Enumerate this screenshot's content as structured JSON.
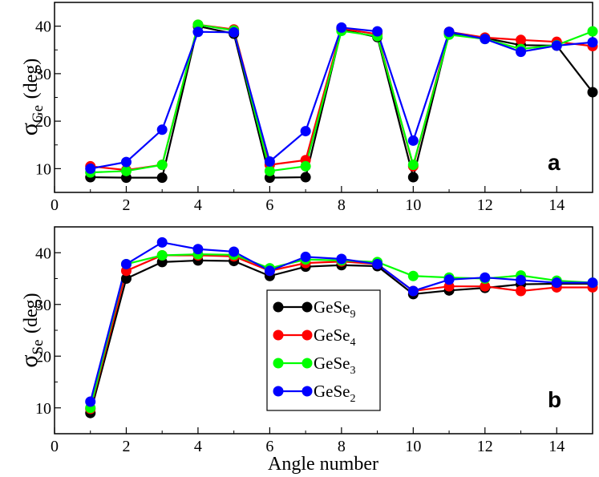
{
  "figure": {
    "xlabel": "Angle number",
    "legend": {
      "placement": "center",
      "entries": [
        {
          "base": "GeSe",
          "sub": "9"
        },
        {
          "base": "GeSe",
          "sub": "4"
        },
        {
          "base": "GeSe",
          "sub": "3"
        },
        {
          "base": "GeSe",
          "sub": "2"
        }
      ]
    }
  },
  "chart_data": [
    {
      "type": "line",
      "panel_label": "a",
      "ylabel": {
        "base": "σ",
        "sub": "Ge",
        "unit": "(deg)"
      },
      "x": [
        1,
        2,
        3,
        4,
        5,
        6,
        7,
        8,
        9,
        10,
        11,
        12,
        13,
        14,
        15
      ],
      "xlim": [
        0,
        15
      ],
      "ylim": [
        5,
        45
      ],
      "xticks": [
        0,
        2,
        4,
        6,
        8,
        10,
        12,
        14
      ],
      "yticks": [
        10,
        20,
        30,
        40
      ],
      "grid": false,
      "series": [
        {
          "name": "GeSe9",
          "color": "#000000",
          "values": [
            8.2,
            8.1,
            8.1,
            40.0,
            38.4,
            8.1,
            8.2,
            39.3,
            37.7,
            8.2,
            38.5,
            37.5,
            36.0,
            35.9,
            26.1
          ]
        },
        {
          "name": "GeSe4",
          "color": "#ff0000",
          "values": [
            10.5,
            9.7,
            10.8,
            40.3,
            39.3,
            10.8,
            11.8,
            39.5,
            38.3,
            10.5,
            38.8,
            37.6,
            37.1,
            36.7,
            35.8
          ]
        },
        {
          "name": "GeSe3",
          "color": "#00ff00",
          "values": [
            9.2,
            9.5,
            10.8,
            40.3,
            39.1,
            9.5,
            10.5,
            39.0,
            37.9,
            10.8,
            38.2,
            37.3,
            35.2,
            36.0,
            38.9
          ]
        },
        {
          "name": "GeSe2",
          "color": "#0000ff",
          "values": [
            10.0,
            11.4,
            18.2,
            38.8,
            38.7,
            11.5,
            17.9,
            39.7,
            38.9,
            15.9,
            38.8,
            37.3,
            34.6,
            35.9,
            36.6
          ]
        }
      ]
    },
    {
      "type": "line",
      "panel_label": "b",
      "ylabel": {
        "base": "σ",
        "sub": "Se",
        "unit": "(deg)"
      },
      "x": [
        1,
        2,
        3,
        4,
        5,
        6,
        7,
        8,
        9,
        10,
        11,
        12,
        13,
        14,
        15
      ],
      "xlim": [
        0,
        15
      ],
      "ylim": [
        5,
        45
      ],
      "xticks": [
        0,
        2,
        4,
        6,
        8,
        10,
        12,
        14
      ],
      "yticks": [
        10,
        20,
        30,
        40
      ],
      "grid": false,
      "series": [
        {
          "name": "GeSe9",
          "color": "#000000",
          "values": [
            9.0,
            35.0,
            38.2,
            38.5,
            38.4,
            35.5,
            37.3,
            37.6,
            37.4,
            32.0,
            32.7,
            33.2,
            33.9,
            34.0,
            34.0
          ]
        },
        {
          "name": "GeSe4",
          "color": "#ff0000",
          "values": [
            9.8,
            36.5,
            39.5,
            39.5,
            39.3,
            36.5,
            38.0,
            38.3,
            37.8,
            32.6,
            33.5,
            33.5,
            32.6,
            33.3,
            33.3
          ]
        },
        {
          "name": "GeSe3",
          "color": "#00ff00",
          "values": [
            10.0,
            37.8,
            39.5,
            39.7,
            39.6,
            37.0,
            38.7,
            38.5,
            38.2,
            35.5,
            35.2,
            35.0,
            35.6,
            34.6,
            34.2
          ]
        },
        {
          "name": "GeSe2",
          "color": "#0000ff",
          "values": [
            11.2,
            37.8,
            42.0,
            40.7,
            40.2,
            36.5,
            39.2,
            38.8,
            37.8,
            32.6,
            34.8,
            35.2,
            34.7,
            34.2,
            34.2
          ]
        }
      ]
    }
  ]
}
